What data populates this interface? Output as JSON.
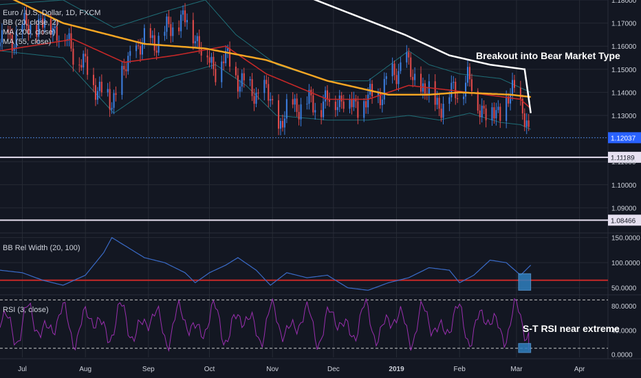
{
  "colors": {
    "background": "#131722",
    "grid": "#262a35",
    "up": "#3d7ee0",
    "down": "#e04a4a",
    "bb": "#1f6f78",
    "ma200": "#f5a623",
    "ma55": "#c62828",
    "trendline": "#ffffff",
    "support": "#e6e0f0",
    "last_price_line": "#4a7fd6",
    "bbw": "#3a6bc8",
    "bbw_level": "#c62828",
    "rsi": "#9b2fb0",
    "rsi_bands": "#c8c8c8",
    "box": "#2f7fbf"
  },
  "main_legend": {
    "symbol": "Euro / U.S. Dollar, 1D, FXCM",
    "bb": "BB (20, close, 2)",
    "ma200": "MA (200, close)",
    "ma55": "MA (55, close)"
  },
  "annotations": {
    "breakout": "Breakout into Bear Market Type",
    "rsi_note": "S-T RSI near extreme"
  },
  "price_labels": {
    "last": "1.12037",
    "support1": "1.11189",
    "support2": "1.08466"
  },
  "bbw_legend": "BB Rel Width (20, 100)",
  "rsi_legend": "RSI (3, close)",
  "chart_data": [
    {
      "type": "candlestick",
      "title": "Euro / U.S. Dollar, 1D, FXCM",
      "y_ticks": [
        "1.18000",
        "1.17000",
        "1.16000",
        "1.15000",
        "1.14000",
        "1.13000",
        "1.11000",
        "1.10000",
        "1.09000"
      ],
      "y_tick_values": [
        1.18,
        1.17,
        1.16,
        1.15,
        1.14,
        1.13,
        1.11,
        1.1,
        1.09
      ],
      "ylim": [
        1.08,
        1.18
      ],
      "x_ticks": [
        "Jul",
        "Aug",
        "Sep",
        "Oct",
        "Nov",
        "Dec",
        "2019",
        "Feb",
        "Mar",
        "Apr"
      ],
      "x_tick_days": [
        0,
        31,
        62,
        92,
        123,
        153,
        184,
        215,
        243,
        274
      ],
      "xlim_days": [
        -11,
        288
      ],
      "close_anchors": [
        [
          -11,
          1.16
        ],
        [
          2,
          1.168
        ],
        [
          14,
          1.17
        ],
        [
          24,
          1.16
        ],
        [
          31,
          1.15
        ],
        [
          43,
          1.135
        ],
        [
          50,
          1.148
        ],
        [
          56,
          1.16
        ],
        [
          63,
          1.162
        ],
        [
          70,
          1.165
        ],
        [
          77,
          1.172
        ],
        [
          82,
          1.17
        ],
        [
          88,
          1.16
        ],
        [
          94,
          1.15
        ],
        [
          99,
          1.155
        ],
        [
          105,
          1.148
        ],
        [
          112,
          1.14
        ],
        [
          120,
          1.14
        ],
        [
          126,
          1.125
        ],
        [
          133,
          1.135
        ],
        [
          140,
          1.135
        ],
        [
          148,
          1.135
        ],
        [
          155,
          1.138
        ],
        [
          163,
          1.135
        ],
        [
          168,
          1.135
        ],
        [
          176,
          1.14
        ],
        [
          183,
          1.148
        ],
        [
          188,
          1.155
        ],
        [
          192,
          1.145
        ],
        [
          198,
          1.141
        ],
        [
          205,
          1.135
        ],
        [
          212,
          1.14
        ],
        [
          219,
          1.145
        ],
        [
          225,
          1.135
        ],
        [
          229,
          1.13
        ],
        [
          236,
          1.133
        ],
        [
          242,
          1.14
        ],
        [
          246,
          1.135
        ],
        [
          249,
          1.12
        ]
      ],
      "ma200_anchors": [
        [
          -11,
          1.183
        ],
        [
          20,
          1.17
        ],
        [
          60,
          1.161
        ],
        [
          90,
          1.159
        ],
        [
          120,
          1.154
        ],
        [
          150,
          1.145
        ],
        [
          180,
          1.139
        ],
        [
          200,
          1.139
        ],
        [
          215,
          1.14
        ],
        [
          240,
          1.139
        ],
        [
          250,
          1.138
        ]
      ],
      "ma55_anchors": [
        [
          -11,
          1.158
        ],
        [
          25,
          1.163
        ],
        [
          50,
          1.153
        ],
        [
          75,
          1.156
        ],
        [
          100,
          1.16
        ],
        [
          120,
          1.148
        ],
        [
          150,
          1.137
        ],
        [
          170,
          1.137
        ],
        [
          190,
          1.143
        ],
        [
          210,
          1.141
        ],
        [
          228,
          1.139
        ],
        [
          245,
          1.137
        ],
        [
          250,
          1.133
        ]
      ],
      "bb_upper_anchors": [
        [
          -11,
          1.178
        ],
        [
          20,
          1.18
        ],
        [
          45,
          1.168
        ],
        [
          70,
          1.175
        ],
        [
          90,
          1.18
        ],
        [
          105,
          1.165
        ],
        [
          125,
          1.152
        ],
        [
          150,
          1.145
        ],
        [
          170,
          1.145
        ],
        [
          190,
          1.158
        ],
        [
          200,
          1.152
        ],
        [
          215,
          1.148
        ],
        [
          235,
          1.146
        ],
        [
          245,
          1.142
        ],
        [
          250,
          1.14
        ]
      ],
      "bb_lower_anchors": [
        [
          -11,
          1.158
        ],
        [
          20,
          1.155
        ],
        [
          45,
          1.131
        ],
        [
          70,
          1.146
        ],
        [
          95,
          1.152
        ],
        [
          110,
          1.143
        ],
        [
          125,
          1.13
        ],
        [
          150,
          1.128
        ],
        [
          170,
          1.128
        ],
        [
          190,
          1.13
        ],
        [
          205,
          1.128
        ],
        [
          220,
          1.131
        ],
        [
          235,
          1.127
        ],
        [
          245,
          1.126
        ],
        [
          250,
          1.124
        ]
      ],
      "trendline_anchors": [
        [
          124,
          1.187
        ],
        [
          150,
          1.178
        ],
        [
          188,
          1.165
        ],
        [
          210,
          1.156
        ],
        [
          230,
          1.152
        ],
        [
          247,
          1.15
        ],
        [
          250,
          1.131
        ]
      ],
      "support_levels": [
        1.11189,
        1.08466
      ],
      "last_close": 1.12037
    },
    {
      "type": "line",
      "title": "BB Rel Width (20, 100)",
      "y_ticks": [
        "150.0000",
        "100.0000",
        "50.0000"
      ],
      "y_tick_values": [
        150,
        100,
        50
      ],
      "ylim": [
        40,
        155
      ],
      "level": 65,
      "anchors": [
        [
          -11,
          85
        ],
        [
          0,
          80
        ],
        [
          10,
          65
        ],
        [
          20,
          55
        ],
        [
          31,
          75
        ],
        [
          40,
          120
        ],
        [
          44,
          150
        ],
        [
          50,
          135
        ],
        [
          60,
          110
        ],
        [
          70,
          100
        ],
        [
          80,
          80
        ],
        [
          85,
          60
        ],
        [
          92,
          80
        ],
        [
          100,
          95
        ],
        [
          106,
          110
        ],
        [
          115,
          85
        ],
        [
          122,
          55
        ],
        [
          130,
          80
        ],
        [
          140,
          70
        ],
        [
          150,
          75
        ],
        [
          160,
          50
        ],
        [
          170,
          45
        ],
        [
          180,
          60
        ],
        [
          190,
          70
        ],
        [
          200,
          90
        ],
        [
          210,
          85
        ],
        [
          215,
          60
        ],
        [
          222,
          75
        ],
        [
          230,
          105
        ],
        [
          238,
          100
        ],
        [
          245,
          75
        ],
        [
          250,
          95
        ]
      ]
    },
    {
      "type": "line",
      "title": "RSI (3, close)",
      "y_ticks": [
        "80.0000",
        "40.0000",
        "0.0000"
      ],
      "y_tick_values": [
        80,
        40,
        0
      ],
      "ylim": [
        -5,
        95
      ],
      "bands": [
        90,
        10
      ]
    }
  ]
}
